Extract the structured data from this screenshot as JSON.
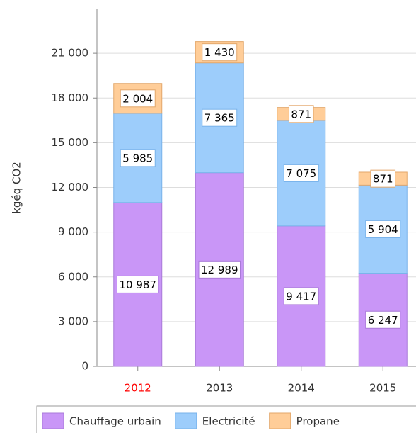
{
  "chart_data": {
    "type": "stacked_bar",
    "y_axis_label": "kgéq CO2",
    "categories": [
      "2012",
      "2013",
      "2014",
      "2015"
    ],
    "category_label_colors": [
      "#ff0000",
      "#333333",
      "#333333",
      "#333333"
    ],
    "series": [
      {
        "name": "Chauffage urbain",
        "color": "#c996f7",
        "border": "#a97ad8",
        "values": [
          10987,
          12989,
          9417,
          6247
        ],
        "value_labels": [
          "10 987",
          "12 989",
          "9 417",
          "6 247"
        ]
      },
      {
        "name": "Electricité",
        "color": "#9dcdfb",
        "border": "#78b2ea",
        "values": [
          5985,
          7365,
          7075,
          5904
        ],
        "value_labels": [
          "5 985",
          "7 365",
          "7 075",
          "5 904"
        ]
      },
      {
        "name": "Propane",
        "color": "#ffcd98",
        "border": "#e3a76a",
        "values": [
          2004,
          1430,
          871,
          871
        ],
        "value_labels": [
          "2 004",
          "1 430",
          "871",
          "871"
        ]
      }
    ],
    "ylim": [
      0,
      24000
    ],
    "yticks": [
      {
        "value": 0,
        "label": "0"
      },
      {
        "value": 3000,
        "label": "3 000"
      },
      {
        "value": 6000,
        "label": "6 000"
      },
      {
        "value": 9000,
        "label": "9 000"
      },
      {
        "value": 12000,
        "label": "12 000"
      },
      {
        "value": 15000,
        "label": "15 000"
      },
      {
        "value": 18000,
        "label": "18 000"
      },
      {
        "value": 21000,
        "label": "21 000"
      }
    ],
    "grid": true
  }
}
